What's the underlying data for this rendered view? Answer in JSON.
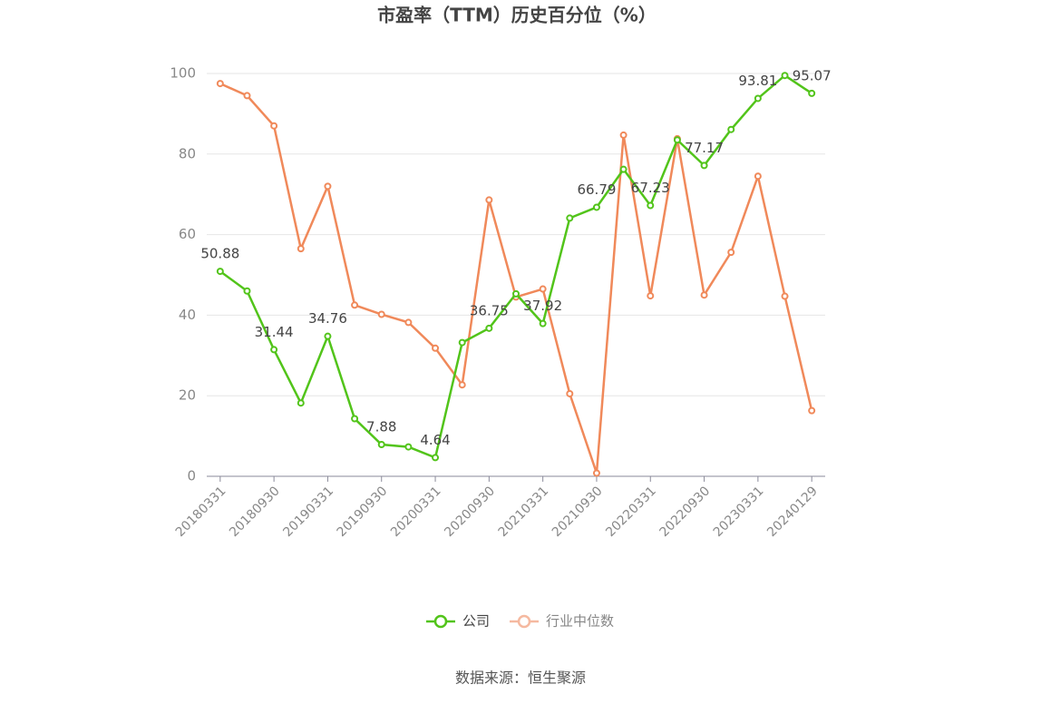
{
  "chart_data": {
    "type": "line",
    "title": "市盈率（TTM）历史百分位（%）",
    "source": "数据来源：恒生聚源",
    "categories": [
      "20180331",
      null,
      "20180930",
      null,
      "20190331",
      null,
      "20190930",
      null,
      "20200331",
      null,
      "20200930",
      null,
      "20210331",
      null,
      "20210930",
      null,
      "20220331",
      null,
      "20220930",
      null,
      "20230331",
      null,
      "20240129"
    ],
    "series": [
      {
        "name": "公司",
        "color": "#52c41a",
        "values": [
          50.88,
          46.0,
          31.44,
          18.2,
          34.76,
          14.3,
          7.88,
          7.3,
          4.64,
          33.2,
          36.75,
          45.3,
          37.92,
          64.1,
          66.79,
          76.2,
          67.23,
          83.5,
          77.17,
          86.1,
          93.81,
          99.5,
          95.07
        ],
        "value_labels": [
          "50.88",
          null,
          "31.44",
          null,
          "34.76",
          null,
          "7.88",
          null,
          "4.64",
          null,
          "36.75",
          null,
          "37.92",
          null,
          "66.79",
          null,
          "67.23",
          null,
          "77.17",
          null,
          "93.81",
          null,
          "95.07"
        ]
      },
      {
        "name": "行业中位数",
        "color": "#f0895a",
        "values": [
          97.5,
          94.5,
          87.0,
          56.5,
          72.0,
          42.5,
          40.2,
          38.2,
          31.8,
          22.7,
          68.6,
          44.5,
          46.5,
          20.5,
          0.8,
          84.7,
          44.8,
          83.8,
          45.0,
          55.6,
          74.5,
          44.7,
          16.3
        ]
      }
    ],
    "ylim": [
      0,
      100
    ],
    "yticks": [
      0,
      20,
      40,
      60,
      80,
      100
    ],
    "grid": true,
    "legend": "bottom"
  }
}
